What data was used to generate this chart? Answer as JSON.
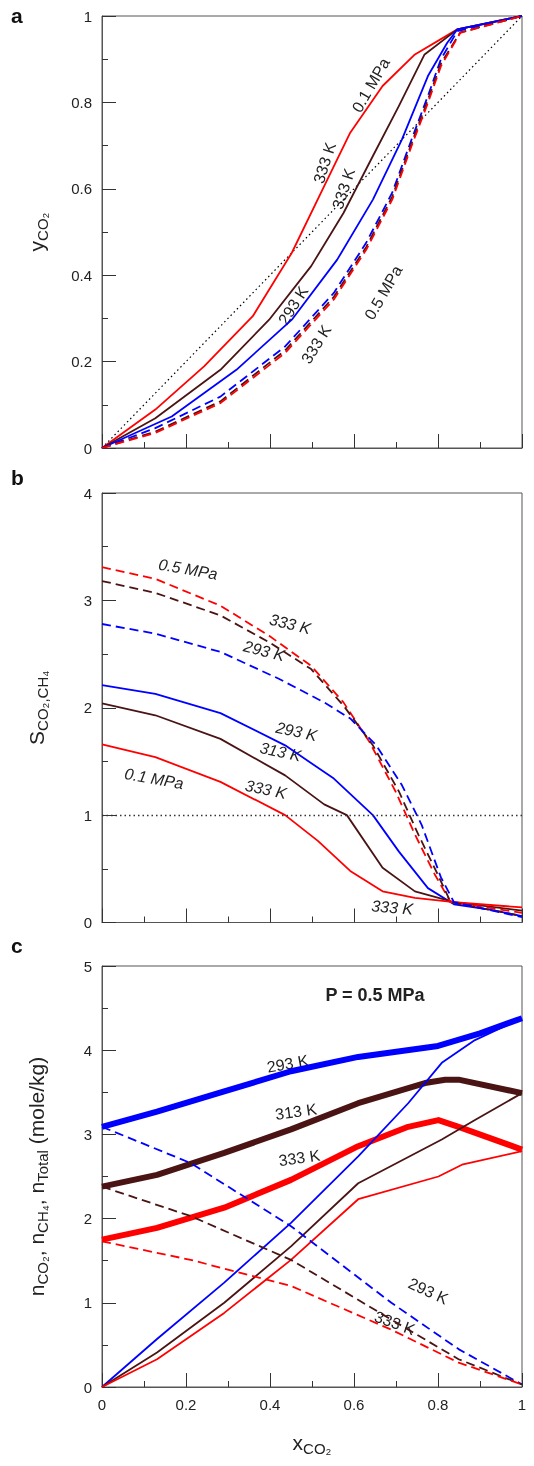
{
  "chart_data": [
    {
      "type": "line",
      "title": "a",
      "ylabel": "y$_{CO₂}$",
      "xlim": [
        0,
        1
      ],
      "ylim": [
        0,
        1
      ],
      "xticks": [
        0,
        0.2,
        0.4,
        0.6,
        0.8,
        1
      ],
      "yticks": [
        0,
        0.2,
        0.4,
        0.6,
        0.8,
        1
      ],
      "tick_labels": "y",
      "marker": "none",
      "series": [
        {
          "color": "#000000",
          "line_style": "dotted",
          "x": [
            0,
            1
          ],
          "values": [
            0,
            1
          ]
        },
        {
          "color": "#ff0000",
          "line_style": "solid",
          "x": [
            0,
            0.127,
            0.243,
            0.359,
            0.452,
            0.529,
            0.591,
            0.668,
            0.745,
            0.846,
            1
          ],
          "values": [
            0,
            0.089,
            0.189,
            0.305,
            0.452,
            0.606,
            0.73,
            0.838,
            0.911,
            0.969,
            1
          ]
        },
        {
          "color": "#4a1414",
          "line_style": "solid",
          "x": [
            0,
            0.127,
            0.282,
            0.398,
            0.498,
            0.575,
            0.645,
            0.707,
            0.768,
            0.846,
            1
          ],
          "values": [
            0,
            0.069,
            0.181,
            0.297,
            0.421,
            0.544,
            0.676,
            0.792,
            0.911,
            0.969,
            1
          ]
        },
        {
          "color": "#0000ff",
          "line_style": "solid",
          "x": [
            0,
            0.166,
            0.32,
            0.452,
            0.56,
            0.645,
            0.714,
            0.776,
            0.822,
            0.846,
            1
          ],
          "values": [
            0,
            0.073,
            0.181,
            0.297,
            0.436,
            0.575,
            0.714,
            0.861,
            0.938,
            0.969,
            1
          ]
        },
        {
          "color": "#0000ff",
          "line_style": "dashed",
          "x": [
            0,
            0.127,
            0.282,
            0.436,
            0.552,
            0.629,
            0.691,
            0.737,
            0.776,
            0.807,
            0.846,
            1
          ],
          "values": [
            0,
            0.046,
            0.119,
            0.235,
            0.359,
            0.475,
            0.591,
            0.714,
            0.815,
            0.9,
            0.965,
            1
          ]
        },
        {
          "color": "#4a1414",
          "line_style": "dashed",
          "x": [
            0,
            0.127,
            0.282,
            0.436,
            0.552,
            0.629,
            0.691,
            0.737,
            0.776,
            0.807,
            0.853,
            1
          ],
          "values": [
            0,
            0.038,
            0.108,
            0.226,
            0.35,
            0.465,
            0.582,
            0.705,
            0.806,
            0.89,
            0.962,
            1
          ]
        },
        {
          "color": "#ff0000",
          "line_style": "dashed",
          "x": [
            0,
            0.127,
            0.282,
            0.436,
            0.552,
            0.629,
            0.691,
            0.737,
            0.776,
            0.807,
            0.853,
            1
          ],
          "values": [
            0,
            0.035,
            0.104,
            0.22,
            0.344,
            0.459,
            0.575,
            0.699,
            0.799,
            0.884,
            0.961,
            1
          ]
        }
      ],
      "annotations": [
        "0.1 MPa",
        "333 K",
        "333 K",
        "293 K",
        "333 K",
        "0.5 MPa"
      ]
    },
    {
      "type": "line",
      "title": "b",
      "ylabel": "S$_{CO₂,CH₄}$",
      "xlim": [
        0,
        1
      ],
      "ylim": [
        0,
        4
      ],
      "xticks": [
        0,
        0.2,
        0.4,
        0.6,
        0.8,
        1
      ],
      "yticks": [
        0,
        1,
        2,
        3,
        4
      ],
      "tick_labels": "y",
      "marker": "none",
      "ref_lines": [
        {
          "axis": "y",
          "value": 1,
          "color": "#333333",
          "line_style": "dotted"
        }
      ],
      "series": [
        {
          "color": "#0000ff",
          "line_style": "solid",
          "x": [
            0,
            0.127,
            0.282,
            0.436,
            0.552,
            0.645,
            0.707,
            0.776,
            0.838,
            0.923,
            1
          ],
          "values": [
            2.21,
            2.13,
            1.95,
            1.65,
            1.34,
            1.0,
            0.66,
            0.32,
            0.17,
            0.12,
            0.06
          ]
        },
        {
          "color": "#4a1414",
          "line_style": "solid",
          "x": [
            0,
            0.127,
            0.282,
            0.436,
            0.529,
            0.583,
            0.668,
            0.745,
            0.838,
            1
          ],
          "values": [
            2.04,
            1.93,
            1.71,
            1.37,
            1.1,
            1.0,
            0.51,
            0.29,
            0.19,
            0.11
          ]
        },
        {
          "color": "#ff0000",
          "line_style": "solid",
          "x": [
            0,
            0.127,
            0.282,
            0.436,
            0.514,
            0.591,
            0.668,
            0.745,
            0.838,
            1
          ],
          "values": [
            1.66,
            1.54,
            1.31,
            1.0,
            0.76,
            0.48,
            0.29,
            0.23,
            0.19,
            0.14
          ]
        },
        {
          "color": "#ff0000",
          "line_style": "dashed",
          "x": [
            0,
            0.127,
            0.282,
            0.398,
            0.498,
            0.575,
            0.637,
            0.699,
            0.745,
            0.792,
            0.83,
            0.9,
            1
          ],
          "values": [
            3.31,
            3.2,
            2.95,
            2.67,
            2.39,
            2.05,
            1.68,
            1.22,
            0.82,
            0.45,
            0.19,
            0.15,
            0.09
          ]
        },
        {
          "color": "#4a1414",
          "line_style": "dashed",
          "x": [
            0,
            0.127,
            0.282,
            0.398,
            0.498,
            0.575,
            0.645,
            0.707,
            0.753,
            0.799,
            0.83,
            1
          ],
          "values": [
            3.18,
            3.07,
            2.86,
            2.61,
            2.36,
            2.02,
            1.65,
            1.22,
            0.82,
            0.45,
            0.19,
            0.06
          ]
        },
        {
          "color": "#0000ff",
          "line_style": "dashed",
          "x": [
            0,
            0.127,
            0.282,
            0.421,
            0.529,
            0.591,
            0.653,
            0.714,
            0.761,
            0.807,
            0.838,
            1
          ],
          "values": [
            2.78,
            2.69,
            2.52,
            2.27,
            2.05,
            1.9,
            1.65,
            1.28,
            0.91,
            0.42,
            0.19,
            0.05
          ]
        }
      ],
      "annotations": [
        "0.5 MPa",
        "333 K",
        "293 K",
        "293 K",
        "313 K",
        "0.1 MPa",
        "333 K",
        "333 K"
      ]
    },
    {
      "type": "line",
      "title": "c",
      "xlabel": "x$_{CO₂}$",
      "ylabel": "n$_{CO₂}$, n$_{CH₄}$, n$_{Total}$ (mole/kg)",
      "xlim": [
        0,
        1
      ],
      "ylim": [
        0,
        5
      ],
      "xticks": [
        0,
        0.2,
        0.4,
        0.6,
        0.8,
        1
      ],
      "yticks": [
        0,
        1,
        2,
        3,
        4,
        5
      ],
      "marker": "none",
      "series": [
        {
          "color": "#0000ff",
          "line_style": "solid",
          "x": [
            0,
            0.131,
            0.291,
            0.45,
            0.61,
            0.8,
            0.9,
            1
          ],
          "values": [
            3.09,
            3.27,
            3.51,
            3.75,
            3.92,
            4.05,
            4.2,
            4.38
          ]
        },
        {
          "color": "#4a1414",
          "line_style": "solid",
          "x": [
            0,
            0.131,
            0.291,
            0.45,
            0.61,
            0.769,
            0.817,
            0.849,
            1
          ],
          "values": [
            2.38,
            2.52,
            2.78,
            3.06,
            3.37,
            3.61,
            3.65,
            3.65,
            3.49
          ]
        },
        {
          "color": "#ff0000",
          "line_style": "solid",
          "x": [
            0,
            0.131,
            0.291,
            0.45,
            0.61,
            0.729,
            0.801,
            0.849,
            1
          ],
          "values": [
            1.75,
            1.89,
            2.13,
            2.46,
            2.86,
            3.09,
            3.17,
            3.09,
            2.82
          ]
        },
        {
          "color": "#0000ff",
          "line_style": "solid",
          "x": [
            0,
            0.131,
            0.291,
            0.45,
            0.61,
            0.729,
            0.809,
            0.888,
            1
          ],
          "values": [
            0,
            0.57,
            1.24,
            1.95,
            2.74,
            3.37,
            3.85,
            4.12,
            4.38
          ]
        },
        {
          "color": "#4a1414",
          "line_style": "solid",
          "x": [
            0,
            0.131,
            0.291,
            0.45,
            0.61,
            0.809,
            0.888,
            1
          ],
          "values": [
            0,
            0.41,
            1.0,
            1.67,
            2.42,
            2.94,
            3.17,
            3.49
          ]
        },
        {
          "color": "#ff0000",
          "line_style": "solid",
          "x": [
            0,
            0.131,
            0.291,
            0.45,
            0.61,
            0.801,
            0.857,
            1
          ],
          "values": [
            0,
            0.33,
            0.88,
            1.51,
            2.23,
            2.5,
            2.64,
            2.8
          ]
        },
        {
          "color": "#0000ff",
          "line_style": "dashed",
          "x": [
            0,
            0.211,
            0.45,
            0.689,
            0.849,
            1
          ],
          "values": [
            3.09,
            2.66,
            1.91,
            1.0,
            0.45,
            0.03
          ]
        },
        {
          "color": "#4a1414",
          "line_style": "dashed",
          "x": [
            0,
            0.211,
            0.45,
            0.689,
            0.849,
            1
          ],
          "values": [
            2.38,
            2.03,
            1.51,
            0.8,
            0.33,
            0.03
          ]
        },
        {
          "color": "#ff0000",
          "line_style": "dashed",
          "x": [
            0,
            0.211,
            0.45,
            0.689,
            0.849,
            1
          ],
          "values": [
            1.73,
            1.51,
            1.2,
            0.68,
            0.29,
            0.03
          ]
        }
      ],
      "annotations": [
        "P = 0.5 MPa",
        "293 K",
        "313 K",
        "333 K",
        "293 K",
        "333 K"
      ]
    }
  ]
}
